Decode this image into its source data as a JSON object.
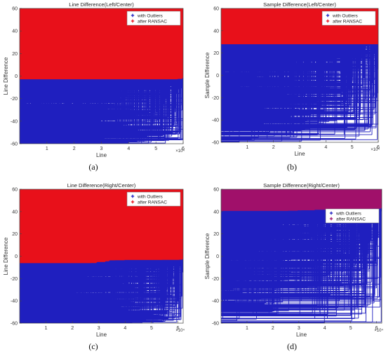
{
  "figure": {
    "panels": [
      {
        "caption": "(a)",
        "legend": {
          "position": "top-right",
          "labels": [
            "with Outliers",
            "after RANSAC"
          ]
        }
      },
      {
        "caption": "(b)",
        "legend": {
          "position": "top-right",
          "labels": [
            "with Outliers",
            "after RANSAC"
          ]
        }
      },
      {
        "caption": "(c)",
        "legend": {
          "position": "top-right",
          "labels": [
            "with Outliers",
            "after RANSAC"
          ]
        }
      },
      {
        "caption": "(d)",
        "legend": {
          "position": "right",
          "labels": [
            "with Outliers",
            "after RANSAC"
          ]
        }
      }
    ]
  },
  "colors": {
    "outliers": "#1f1fbf",
    "ransac": "#e8101a",
    "ransac_d": "#a0106a"
  },
  "chart_data": [
    {
      "type": "scatter",
      "title": "Line Difference(Left/Center)",
      "xlabel": "Line",
      "ylabel": "Line Difference",
      "xlim": [
        0,
        60000
      ],
      "ylim": [
        -60,
        60
      ],
      "xticks": [
        1,
        2,
        3,
        4,
        5,
        6
      ],
      "yticks": [
        -60,
        -40,
        -20,
        0,
        20,
        40,
        60
      ],
      "x_exponent": "×10⁴",
      "grid": false,
      "series": [
        {
          "name": "with Outliers",
          "description": "scattered points across full range"
        },
        {
          "name": "after RANSAC",
          "x": [
            0,
            10000,
            20000,
            28000,
            35000,
            42000,
            50000,
            60000
          ],
          "y": [
            6,
            7,
            8,
            10,
            7,
            2,
            0,
            -1
          ]
        }
      ]
    },
    {
      "type": "scatter",
      "title": "Sample Difference(Left/Center)",
      "xlabel": "Line",
      "ylabel": "Sample Difference",
      "xlim": [
        0,
        60000
      ],
      "ylim": [
        -60,
        60
      ],
      "xticks": [
        1,
        2,
        3,
        4,
        5,
        6
      ],
      "yticks": [
        -60,
        -40,
        -20,
        0,
        20,
        40,
        60
      ],
      "x_exponent": "×10⁴",
      "grid": false,
      "series": [
        {
          "name": "with Outliers",
          "description": "scattered points across full range"
        },
        {
          "name": "after RANSAC",
          "x": [
            0,
            10000,
            20000,
            25000,
            32000,
            40000,
            50000,
            60000
          ],
          "y": [
            38,
            39,
            40,
            41,
            39,
            36,
            32,
            30
          ]
        }
      ]
    },
    {
      "type": "scatter",
      "title": "Line Difference(Right/Center)",
      "xlabel": "Line",
      "ylabel": "Line Difference",
      "xlim": [
        0,
        62000
      ],
      "ylim": [
        -60,
        60
      ],
      "xticks": [
        1,
        2,
        3,
        4,
        5,
        6
      ],
      "yticks": [
        -60,
        -40,
        -20,
        0,
        20,
        40,
        60
      ],
      "x_exponent": "×10⁴",
      "grid": false,
      "series": [
        {
          "name": "with Outliers",
          "description": "scattered points across full range"
        },
        {
          "name": "after RANSAC",
          "x": [
            0,
            10000,
            20000,
            28000,
            35000,
            45000,
            55000,
            62000
          ],
          "y": [
            -2,
            -2,
            -3,
            -4,
            -2,
            -1,
            -1,
            -1
          ]
        }
      ]
    },
    {
      "type": "scatter",
      "title": "Sample Difference(Right/Center)",
      "xlabel": "Line",
      "ylabel": "Sample Difference",
      "xlim": [
        0,
        62000
      ],
      "ylim": [
        -60,
        60
      ],
      "xticks": [
        1,
        2,
        3,
        4,
        5,
        6
      ],
      "yticks": [
        -60,
        -40,
        -20,
        0,
        20,
        40,
        60
      ],
      "x_exponent": "×10⁴",
      "grid": false,
      "series": [
        {
          "name": "with Outliers",
          "description": "scattered points across full range"
        },
        {
          "name": "after RANSAC",
          "x": [
            0,
            10000,
            20000,
            30000,
            40000,
            50000,
            62000
          ],
          "y": [
            43,
            43,
            43,
            43,
            44,
            44,
            44
          ]
        }
      ]
    }
  ]
}
